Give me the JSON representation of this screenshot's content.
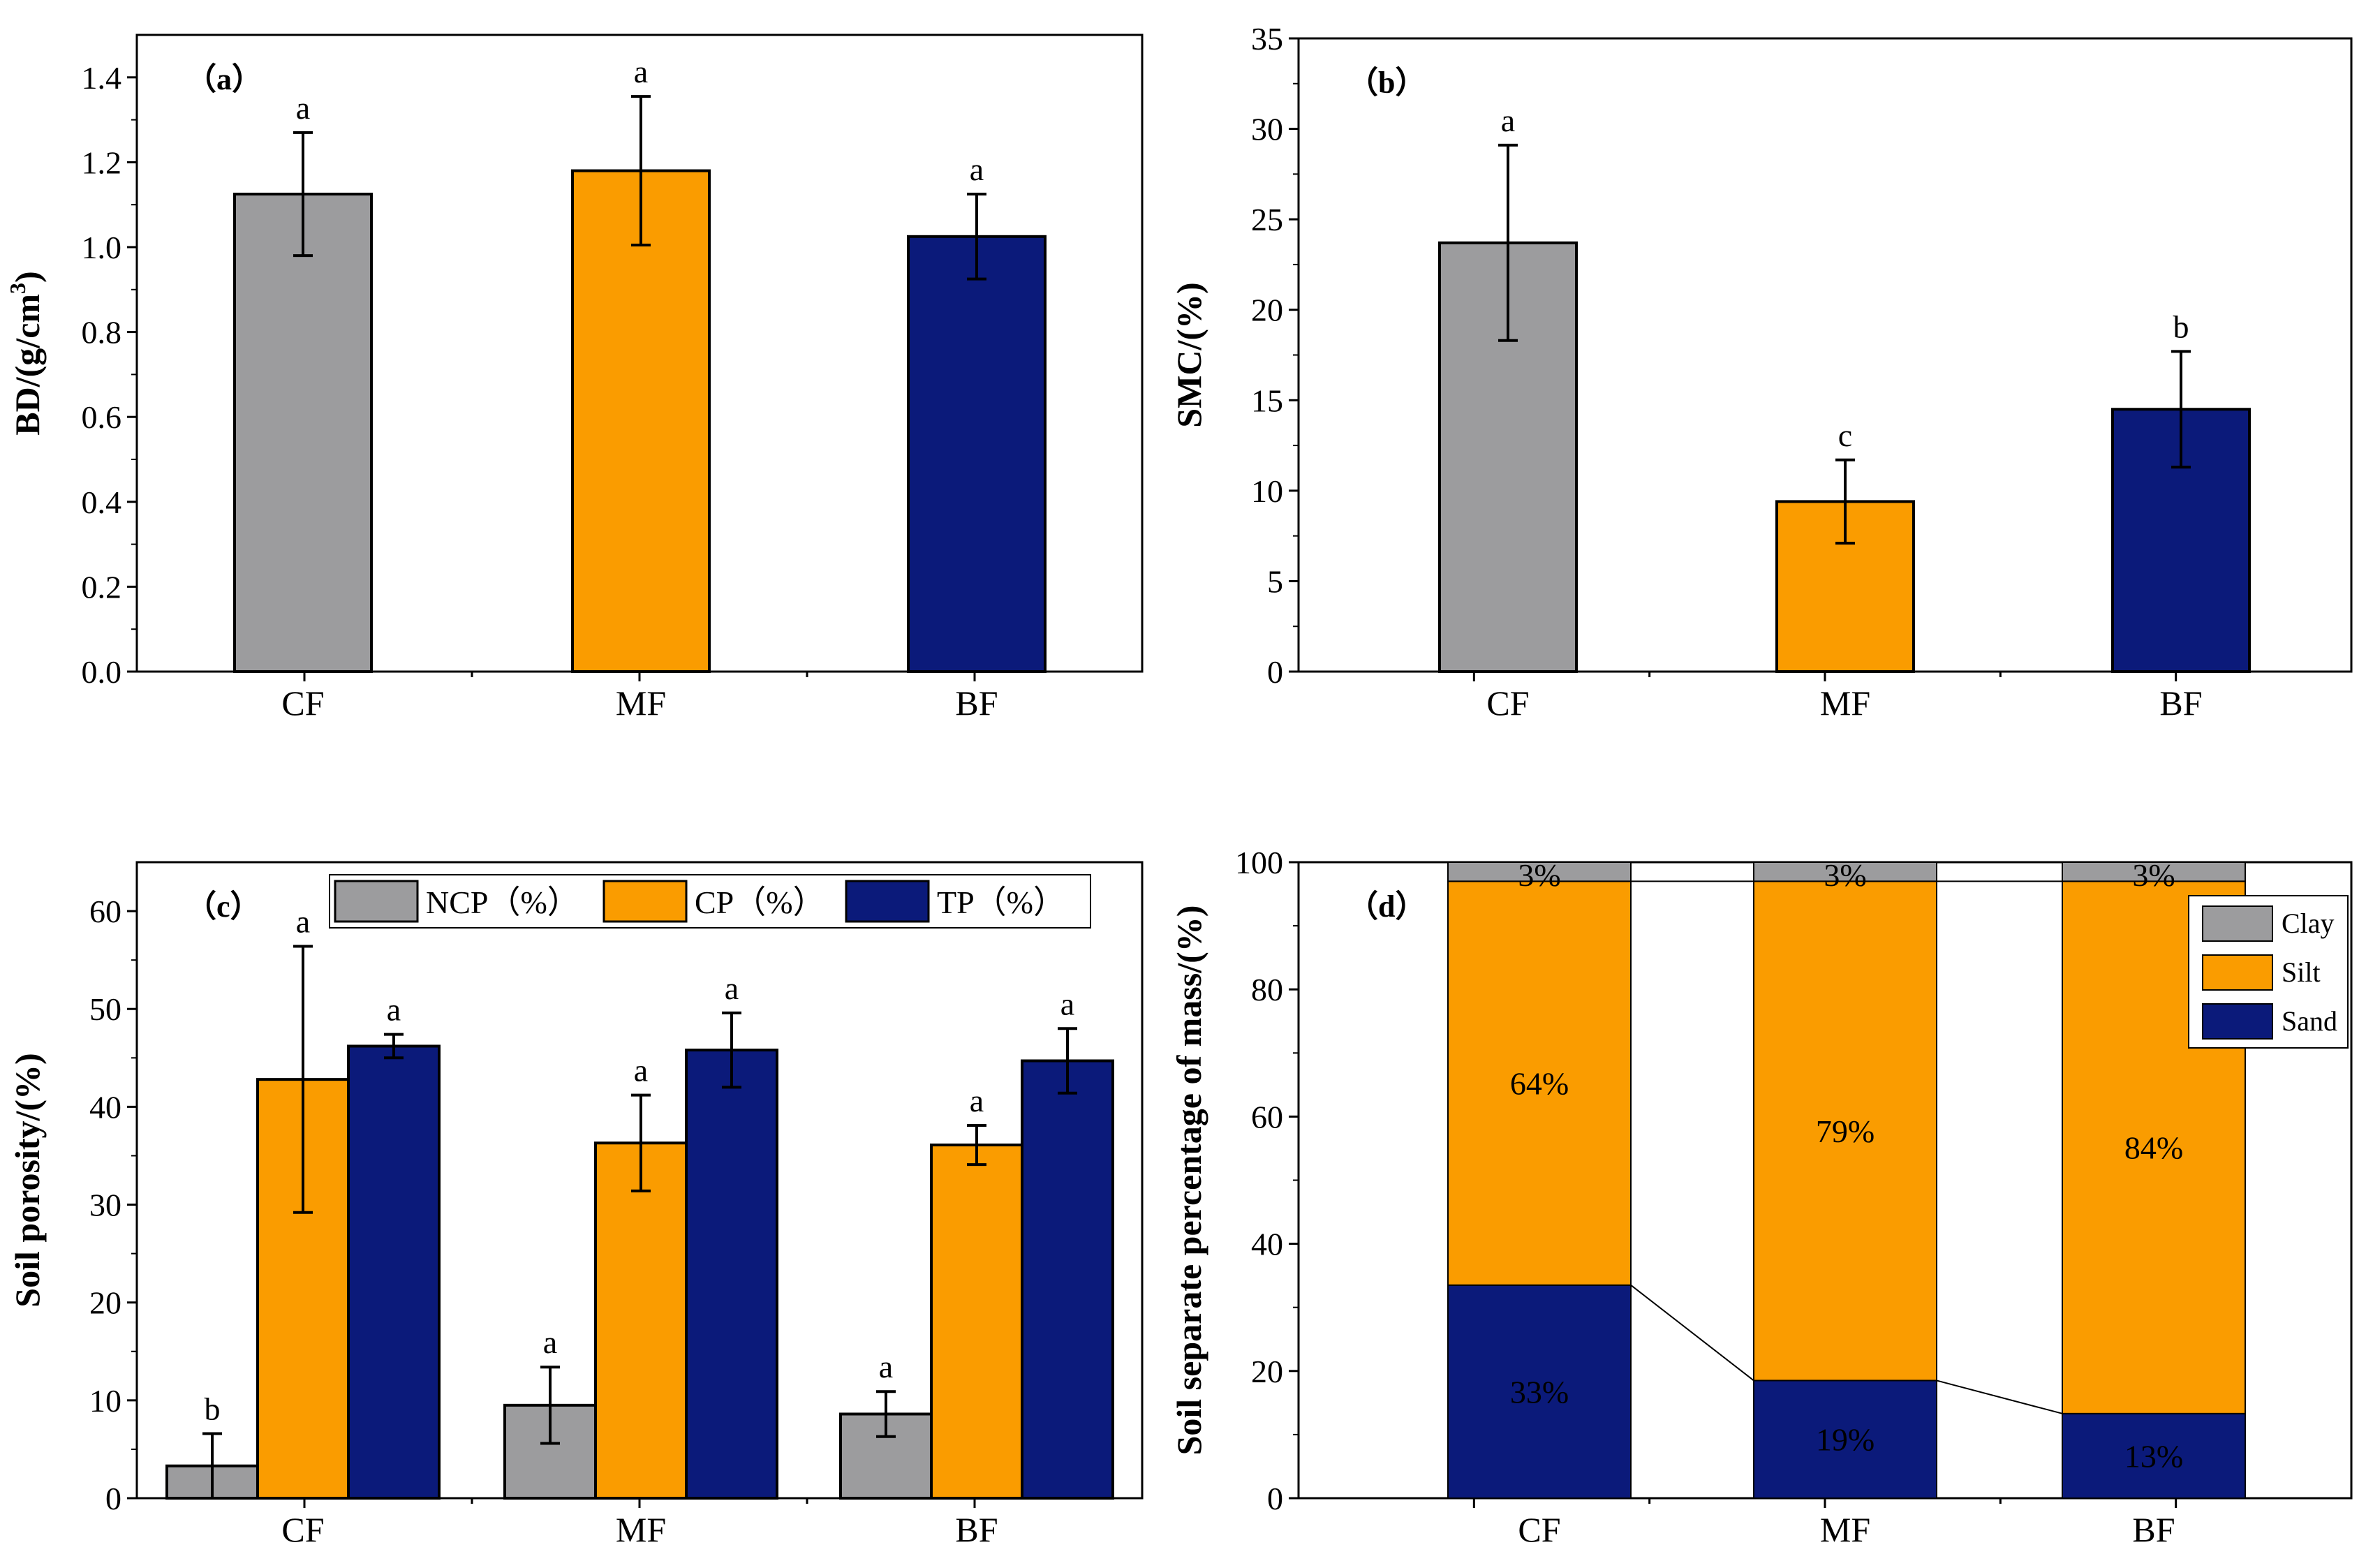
{
  "colors": {
    "gray": "#9c9c9e",
    "orange": "#fa9c00",
    "navy": "#0b1a7a",
    "axis": "#000000",
    "link_line": "#000000"
  },
  "chart_data": [
    {
      "id": "a",
      "type": "bar",
      "panel_label": "（a）",
      "categories": [
        "CF",
        "MF",
        "BF"
      ],
      "values": [
        1.125,
        1.18,
        1.025
      ],
      "errors": [
        0.145,
        0.175,
        0.1
      ],
      "letters": [
        "a",
        "a",
        "a"
      ],
      "bar_colors": [
        "#9c9c9e",
        "#fa9c00",
        "#0b1a7a"
      ],
      "ylabel_main": "BD/(g/cm",
      "ylabel_sup": "3",
      "ylabel_end": ")",
      "ylim": [
        0,
        1.5
      ],
      "yticks": [
        0.0,
        0.2,
        0.4,
        0.6,
        0.8,
        1.0,
        1.2,
        1.4
      ],
      "ytick_labels": [
        "0.0",
        "0.2",
        "0.4",
        "0.6",
        "0.8",
        "1.0",
        "1.2",
        "1.4"
      ]
    },
    {
      "id": "b",
      "type": "bar",
      "panel_label": "（b）",
      "categories": [
        "CF",
        "MF",
        "BF"
      ],
      "values": [
        23.7,
        9.4,
        14.5
      ],
      "errors": [
        5.4,
        2.3,
        3.2
      ],
      "letters": [
        "a",
        "c",
        "b"
      ],
      "bar_colors": [
        "#9c9c9e",
        "#fa9c00",
        "#0b1a7a"
      ],
      "ylabel": "SMC/(%)",
      "ylim": [
        0,
        35
      ],
      "yticks": [
        0,
        5,
        10,
        15,
        20,
        25,
        30,
        35
      ],
      "ytick_labels": [
        "0",
        "5",
        "10",
        "15",
        "20",
        "25",
        "30",
        "35"
      ]
    },
    {
      "id": "c",
      "type": "bar",
      "panel_label": "（c）",
      "categories": [
        "CF",
        "MF",
        "BF"
      ],
      "series": [
        {
          "name": "NCP（%）",
          "color": "#9c9c9e",
          "values": [
            3.3,
            9.5,
            8.6
          ],
          "errors": [
            3.3,
            3.9,
            2.3
          ],
          "letters": [
            "b",
            "a",
            "a"
          ]
        },
        {
          "name": "CP（%）",
          "color": "#fa9c00",
          "values": [
            42.8,
            36.3,
            36.1
          ],
          "errors": [
            13.6,
            4.9,
            2.0
          ],
          "letters": [
            "a",
            "a",
            "a"
          ]
        },
        {
          "name": "TP（%）",
          "color": "#0b1a7a",
          "values": [
            46.2,
            45.8,
            44.7
          ],
          "errors": [
            1.2,
            3.8,
            3.3
          ],
          "letters": [
            "a",
            "a",
            "a"
          ]
        }
      ],
      "ylabel": "Soil porosity/(%)",
      "ylim": [
        0,
        65
      ],
      "yticks": [
        0,
        10,
        20,
        30,
        40,
        50,
        60
      ],
      "ytick_labels": [
        "0",
        "10",
        "20",
        "30",
        "40",
        "50",
        "60"
      ],
      "legend_position": "top"
    },
    {
      "id": "d",
      "type": "bar",
      "stacked": true,
      "panel_label": "（d）",
      "categories": [
        "CF",
        "MF",
        "BF"
      ],
      "series": [
        {
          "name": "Sand",
          "color": "#0b1a7a",
          "values": [
            33.5,
            18.5,
            13.3
          ],
          "labels": [
            "33%",
            "19%",
            "13%"
          ],
          "label_color": "#ffffff"
        },
        {
          "name": "Silt",
          "color": "#fa9c00",
          "values": [
            63.5,
            78.5,
            83.7
          ],
          "labels": [
            "64%",
            "79%",
            "84%"
          ],
          "label_color": "#000000"
        },
        {
          "name": "Clay",
          "color": "#9c9c9e",
          "values": [
            3.0,
            3.0,
            3.0
          ],
          "labels": [
            "3%",
            "3%",
            "3%"
          ],
          "label_color": "#000000"
        }
      ],
      "legend_order": [
        "Clay",
        "Silt",
        "Sand"
      ],
      "ylabel": "Soil separate percentage of mass/(%)",
      "ylim": [
        0,
        100
      ],
      "yticks": [
        0,
        20,
        40,
        60,
        80,
        100
      ],
      "ytick_labels": [
        "0",
        "20",
        "40",
        "60",
        "80",
        "100"
      ],
      "legend_position": "top-right"
    }
  ]
}
